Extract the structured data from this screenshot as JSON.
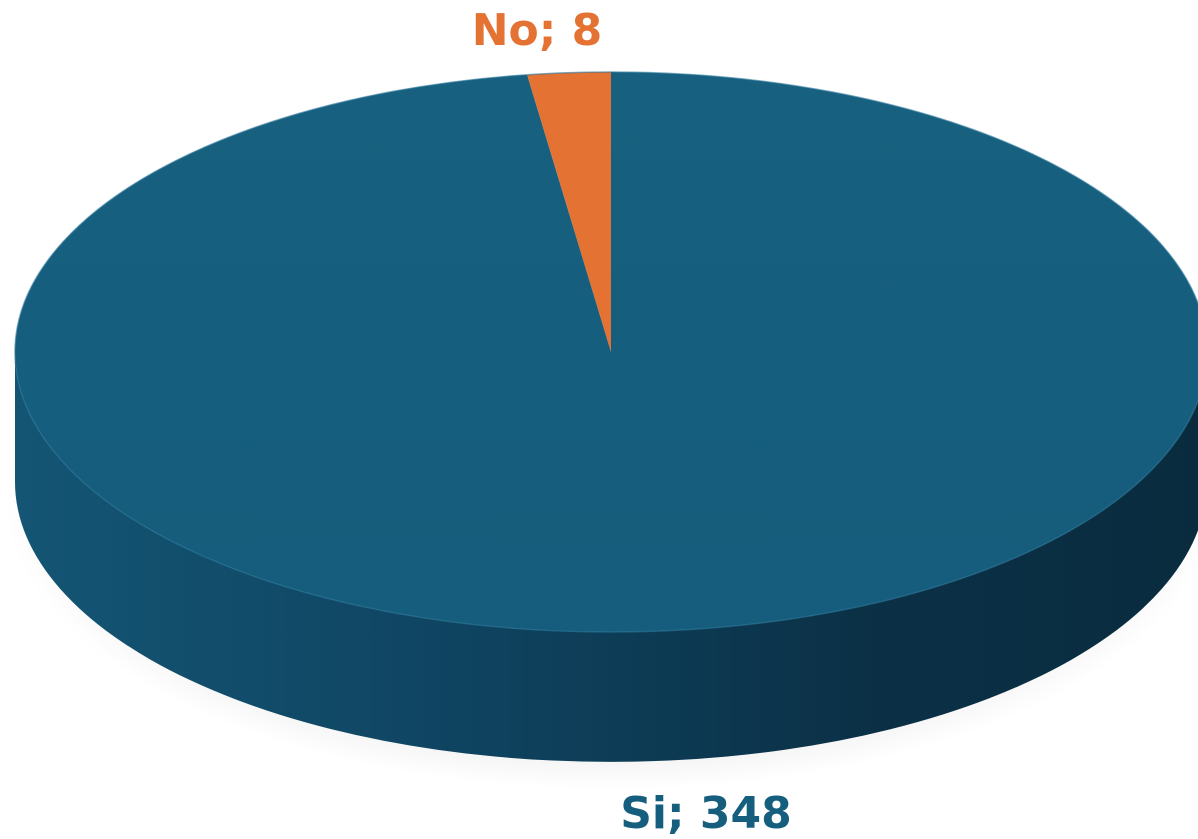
{
  "chart_data": {
    "type": "pie",
    "style": "3d",
    "slices": [
      {
        "label": "Si",
        "value": 348,
        "color": "#165e7e",
        "data_label": "Si; 348"
      },
      {
        "label": "No",
        "value": 8,
        "color": "#e47233",
        "data_label": "No; 8"
      }
    ]
  }
}
